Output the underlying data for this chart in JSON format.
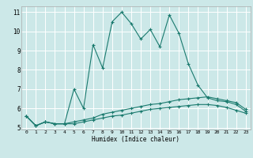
{
  "xlabel": "Humidex (Indice chaleur)",
  "bg_color": "#cce8e8",
  "grid_color": "#ffffff",
  "line_color": "#1a7a6e",
  "x_values": [
    0,
    1,
    2,
    3,
    4,
    5,
    6,
    7,
    8,
    9,
    10,
    11,
    12,
    13,
    14,
    15,
    16,
    17,
    18,
    19,
    20,
    21,
    22,
    23
  ],
  "series1": [
    5.6,
    5.1,
    5.3,
    5.2,
    5.2,
    7.0,
    6.0,
    9.3,
    8.1,
    10.5,
    11.0,
    10.4,
    9.6,
    10.1,
    9.2,
    10.85,
    9.9,
    8.3,
    7.2,
    6.55,
    6.4,
    6.35,
    6.2,
    5.85
  ],
  "series2": [
    5.6,
    5.1,
    5.3,
    5.2,
    5.2,
    5.3,
    5.4,
    5.5,
    5.7,
    5.8,
    5.9,
    6.0,
    6.1,
    6.2,
    6.25,
    6.35,
    6.45,
    6.5,
    6.55,
    6.6,
    6.5,
    6.4,
    6.3,
    5.95
  ],
  "series3": [
    5.6,
    5.1,
    5.3,
    5.2,
    5.2,
    5.2,
    5.3,
    5.4,
    5.5,
    5.6,
    5.65,
    5.75,
    5.85,
    5.95,
    6.0,
    6.05,
    6.1,
    6.15,
    6.2,
    6.2,
    6.15,
    6.05,
    5.9,
    5.75
  ],
  "ylim": [
    4.9,
    11.3
  ],
  "xlim": [
    -0.5,
    23.5
  ],
  "yticks": [
    5,
    6,
    7,
    8,
    9,
    10,
    11
  ],
  "xticks": [
    0,
    1,
    2,
    3,
    4,
    5,
    6,
    7,
    8,
    9,
    10,
    11,
    12,
    13,
    14,
    15,
    16,
    17,
    18,
    19,
    20,
    21,
    22,
    23
  ]
}
